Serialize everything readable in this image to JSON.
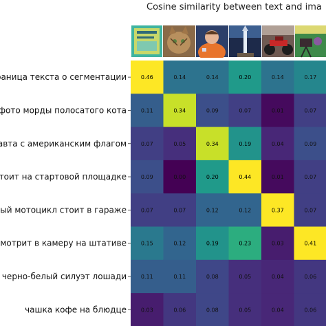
{
  "chart_data": {
    "type": "heatmap",
    "title": "Cosine similarity between text and ima",
    "rows": [
      "граница текста о сегментации",
      "фото морды полосатого кота",
      "лавта с американским флагом",
      "стоит на стартовой площадке",
      "ный мотоцикл стоит в гараже",
      "смотрит в камеру на штативе",
      "черно-белый силуэт лошади",
      "чашка кофе на блюдце"
    ],
    "columns": [
      "page-image",
      "cat-image",
      "astronaut-image",
      "rocket-image",
      "motorcycle-image",
      "camera-image",
      "image-7"
    ],
    "values": [
      [
        0.46,
        0.14,
        0.14,
        0.2,
        0.14,
        0.17,
        null
      ],
      [
        0.11,
        0.34,
        0.09,
        0.07,
        0.01,
        0.07,
        null
      ],
      [
        0.07,
        0.05,
        0.34,
        0.19,
        0.04,
        0.09,
        null
      ],
      [
        0.09,
        0.0,
        0.2,
        0.44,
        0.01,
        0.07,
        null
      ],
      [
        0.07,
        0.07,
        0.12,
        0.12,
        0.37,
        0.07,
        null
      ],
      [
        0.15,
        0.12,
        0.19,
        0.23,
        0.03,
        0.41,
        null
      ],
      [
        0.11,
        0.11,
        0.08,
        0.05,
        0.04,
        0.06,
        null
      ],
      [
        0.03,
        0.06,
        0.08,
        0.05,
        0.04,
        0.06,
        null
      ]
    ],
    "colormap": "viridis",
    "vmin": 0.0,
    "vmax": 0.37,
    "colors": [
      "#440154",
      "#482878",
      "#3e4989",
      "#31688e",
      "#26828e",
      "#1f9e89",
      "#35b779",
      "#6ece58",
      "#b5de2b",
      "#fde725"
    ]
  }
}
